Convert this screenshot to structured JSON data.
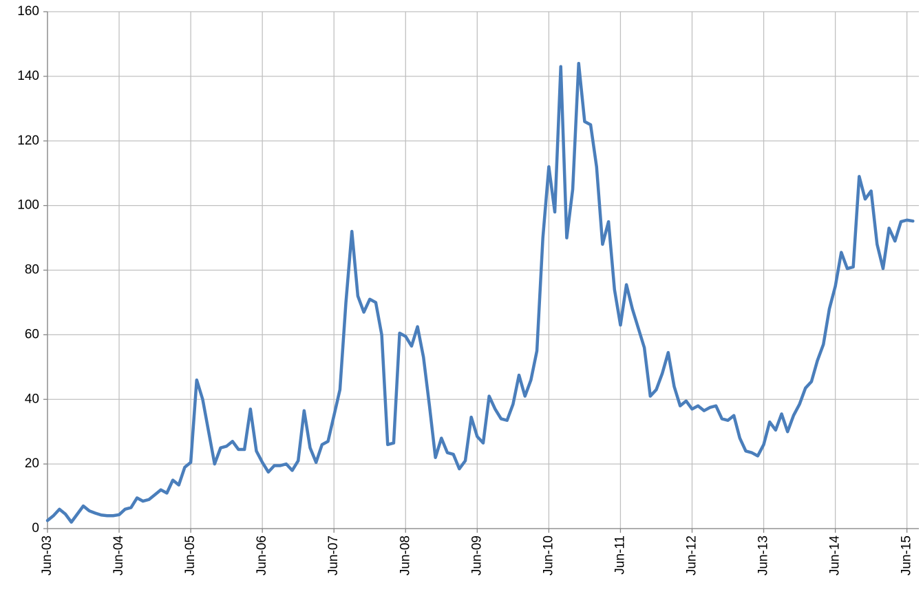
{
  "chart_data": {
    "type": "line",
    "categories": [
      "Jun-03",
      null,
      null,
      null,
      null,
      null,
      null,
      null,
      null,
      null,
      null,
      null,
      "Jun-04",
      null,
      null,
      null,
      null,
      null,
      null,
      null,
      null,
      null,
      null,
      null,
      "Jun-05",
      null,
      null,
      null,
      null,
      null,
      null,
      null,
      null,
      null,
      null,
      null,
      "Jun-06",
      null,
      null,
      null,
      null,
      null,
      null,
      null,
      null,
      null,
      null,
      null,
      "Jun-07",
      null,
      null,
      null,
      null,
      null,
      null,
      null,
      null,
      null,
      null,
      null,
      "Jun-08",
      null,
      null,
      null,
      null,
      null,
      null,
      null,
      null,
      null,
      null,
      null,
      "Jun-09",
      null,
      null,
      null,
      null,
      null,
      null,
      null,
      null,
      null,
      null,
      null,
      "Jun-10",
      null,
      null,
      null,
      null,
      null,
      null,
      null,
      null,
      null,
      null,
      null,
      "Jun-11",
      null,
      null,
      null,
      null,
      null,
      null,
      null,
      null,
      null,
      null,
      null,
      "Jun-12",
      null,
      null,
      null,
      null,
      null,
      null,
      null,
      null,
      null,
      null,
      null,
      "Jun-13",
      null,
      null,
      null,
      null,
      null,
      null,
      null,
      null,
      null,
      null,
      null,
      "Jun-14",
      null,
      null,
      null,
      null,
      null,
      null,
      null,
      null,
      null,
      null,
      null,
      "Jun-15",
      null
    ],
    "series": [
      {
        "color": "#4a7ebb",
        "values": [
          2.5,
          4,
          6,
          4.5,
          2,
          4.5,
          7,
          5.5,
          4.8,
          4.2,
          4,
          4,
          4.3,
          6,
          6.5,
          9.5,
          8.5,
          9,
          10.5,
          12,
          11,
          15,
          13.5,
          19,
          20.5,
          46,
          40,
          30,
          20,
          25,
          25.5,
          27,
          24.5,
          24.5,
          37,
          24,
          20.5,
          17.5,
          19.5,
          19.5,
          20,
          18,
          21,
          36.5,
          25,
          20.5,
          26,
          27,
          35,
          43,
          70,
          92,
          72,
          67,
          71,
          70,
          60,
          26,
          26.5,
          60.5,
          59.5,
          56.5,
          62.5,
          53,
          38,
          22,
          28,
          23.5,
          23,
          18.5,
          21,
          34.5,
          28.5,
          26.5,
          41,
          37,
          34,
          33.5,
          38.5,
          47.5,
          41,
          46,
          55,
          90,
          112,
          98,
          143,
          90,
          105,
          144,
          126,
          125,
          112,
          88,
          95,
          74,
          63,
          75.5,
          68,
          62,
          56,
          41,
          43,
          48,
          54.5,
          44,
          38,
          39.5,
          37,
          38,
          36.5,
          37.5,
          38,
          34,
          33.5,
          35,
          28,
          24,
          23.5,
          22.5,
          26,
          33,
          30.5,
          35.5,
          30,
          35,
          38.5,
          43.5,
          45.5,
          52,
          57,
          68,
          75,
          85.5,
          80.5,
          81,
          109,
          102,
          104.5,
          88,
          80.5,
          93,
          89,
          95,
          95.5,
          95.2
        ]
      }
    ],
    "ylim": [
      0,
      160
    ],
    "yticks": [
      0,
      20,
      40,
      60,
      80,
      100,
      120,
      140,
      160
    ],
    "grid": true
  }
}
